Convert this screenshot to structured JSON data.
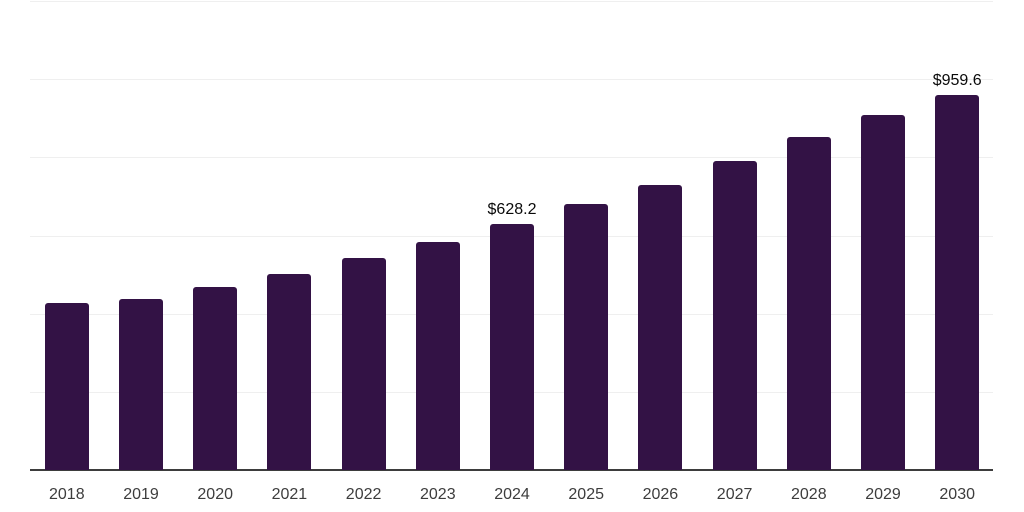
{
  "chart_data": {
    "type": "bar",
    "title": "",
    "xlabel": "",
    "ylabel": "",
    "categories": [
      "2018",
      "2019",
      "2020",
      "2021",
      "2022",
      "2023",
      "2024",
      "2025",
      "2026",
      "2027",
      "2028",
      "2029",
      "2030"
    ],
    "values": [
      427.0,
      437.2,
      467.1,
      502.8,
      542.0,
      582.9,
      628.2,
      680.1,
      730.4,
      790.8,
      853.1,
      909.4,
      959.6
    ],
    "value_labels": [
      "",
      "",
      "",
      "",
      "",
      "",
      "$628.2",
      "",
      "",
      "",
      "",
      "",
      "$959.6"
    ],
    "ylim": [
      0,
      1200
    ],
    "gridline_step": 200,
    "grid": "horizontal-only",
    "legend_position": "none",
    "colors": {
      "bar": "#331245",
      "gridline": "#efefef",
      "axis_line": "#3d3d3d",
      "tick_label": "#3d3d3d",
      "value_label": "#0a0a0a",
      "background": "#ffffff"
    }
  }
}
